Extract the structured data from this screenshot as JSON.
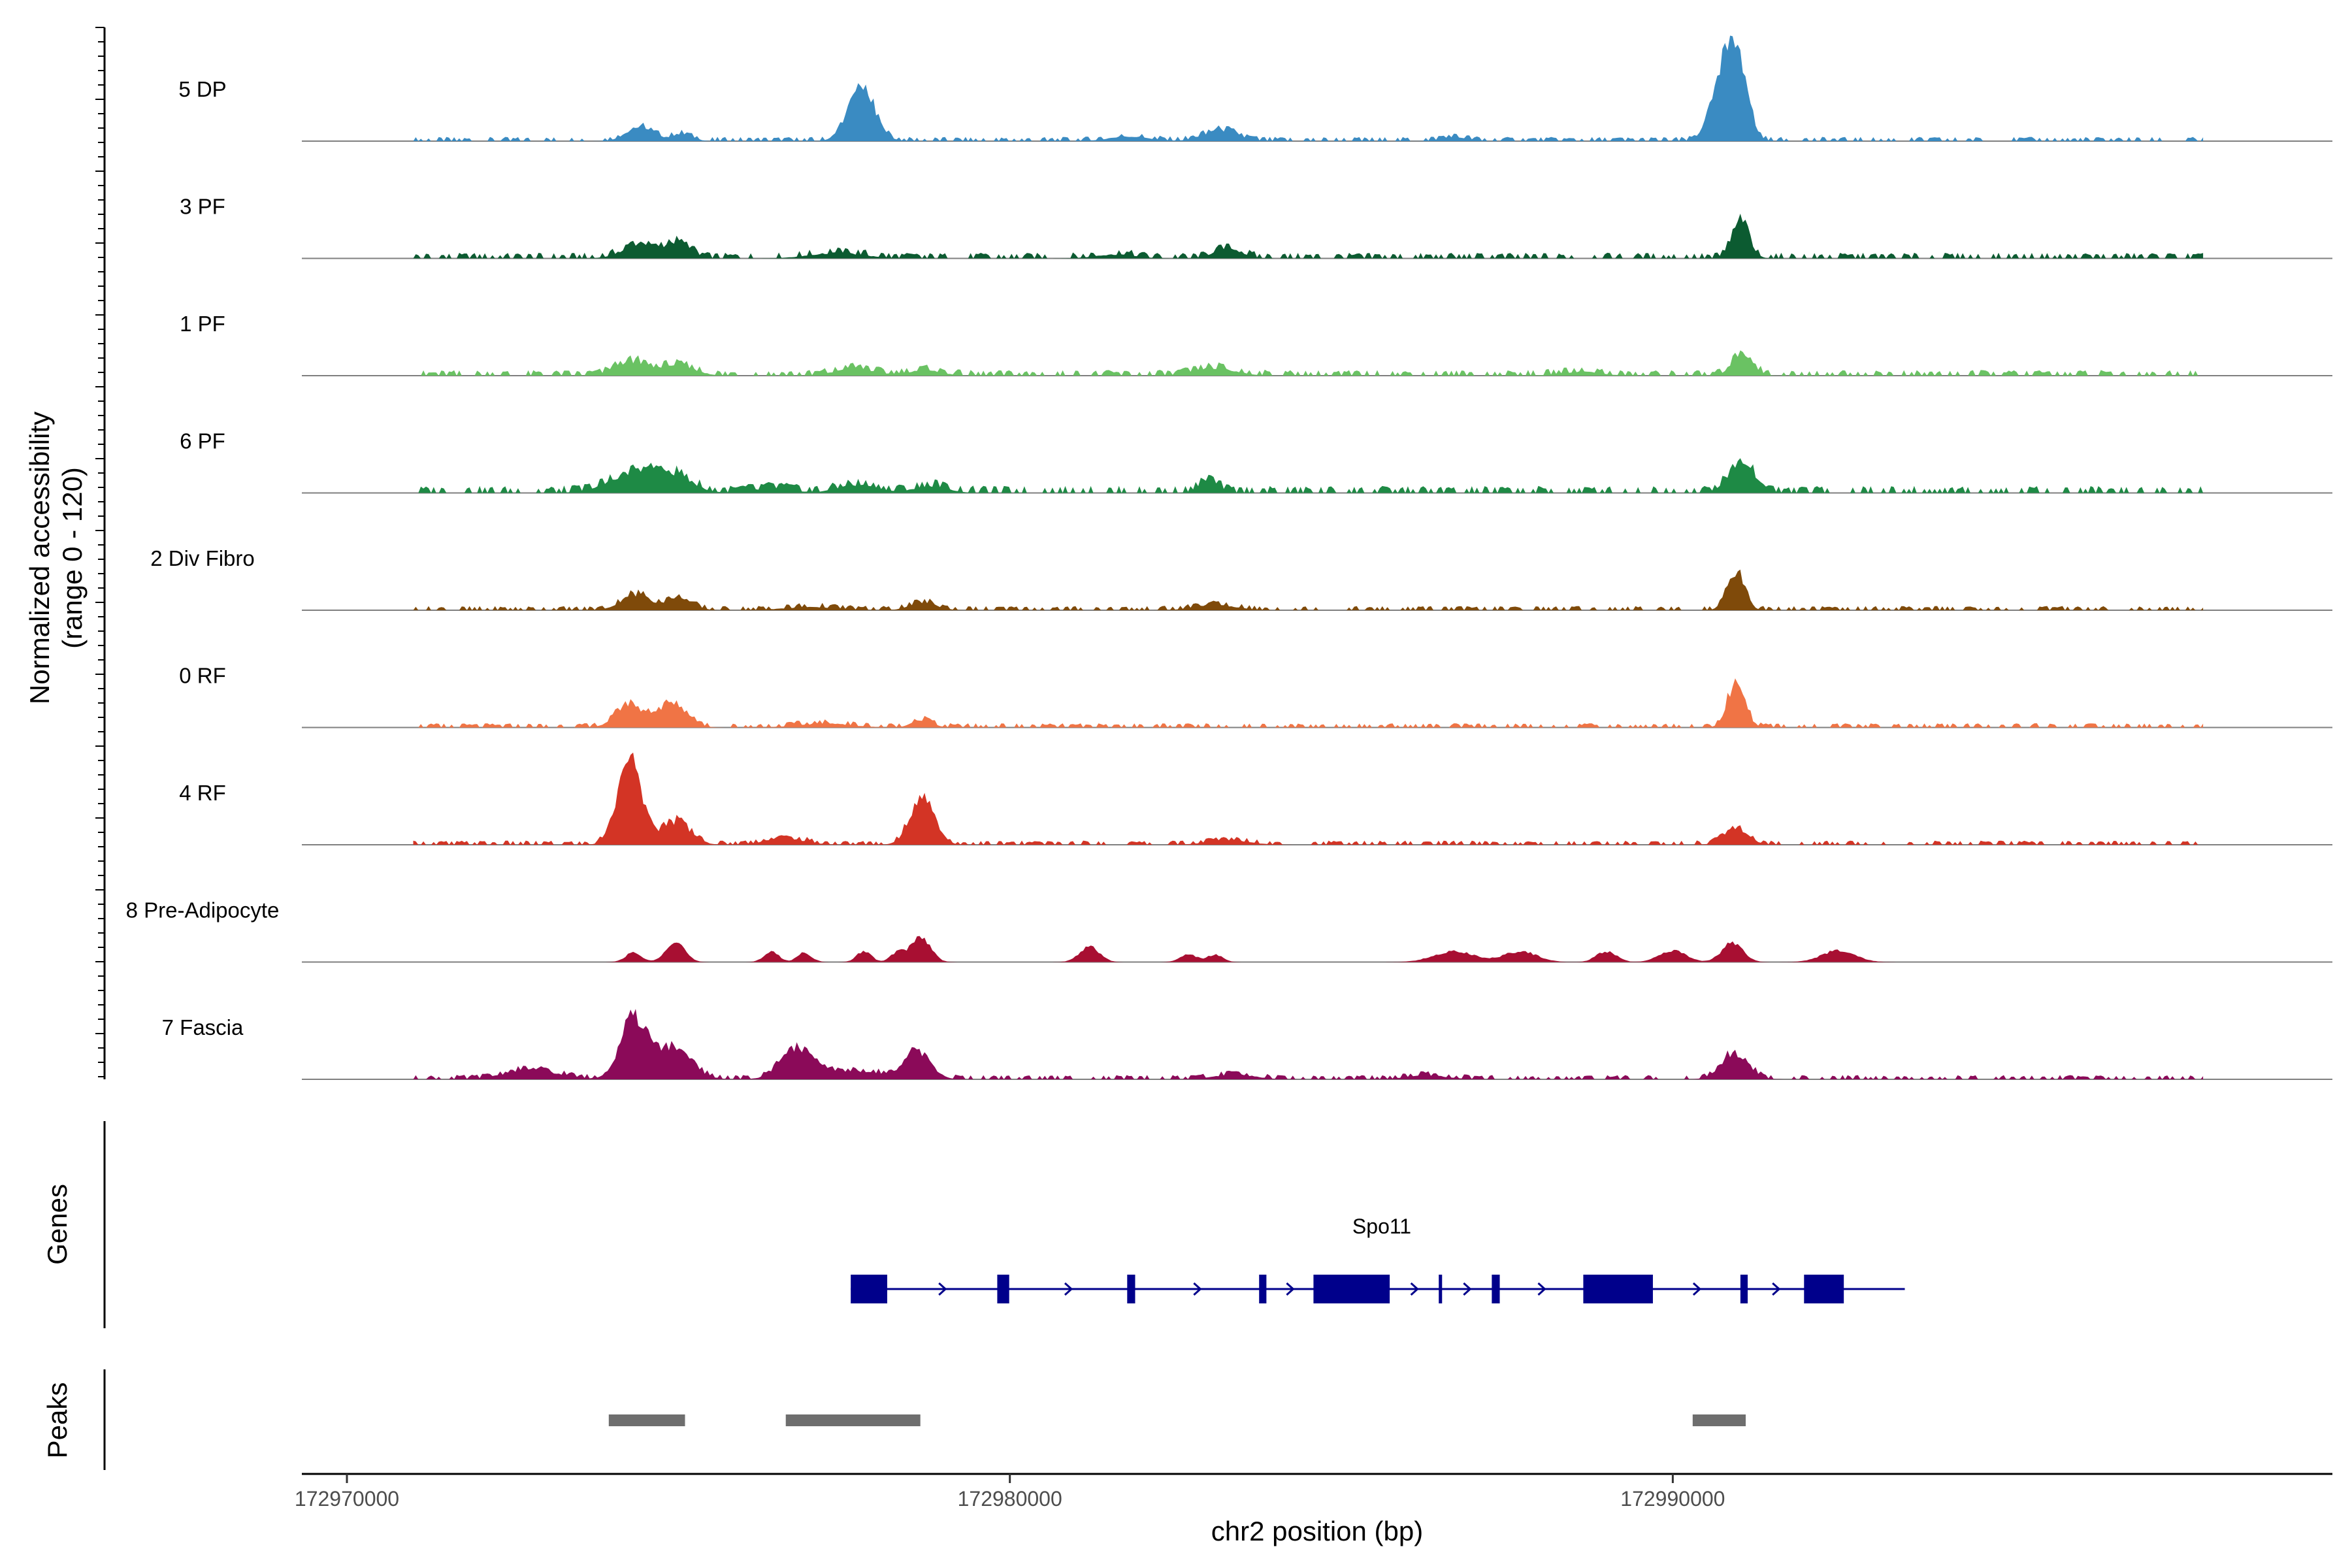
{
  "chart_data": {
    "type": "area",
    "title": "",
    "ylabel_line1": "Normalized accessibility",
    "ylabel_line2": "(range 0 - 120)",
    "xlabel": "chr2 position (bp)",
    "ylim": [
      0,
      120
    ],
    "xlim": [
      172969320,
      172999950
    ],
    "x_ticks": [
      172970000,
      172980000,
      172990000
    ],
    "x_tick_labels": [
      "172970000",
      "172980000",
      "172990000"
    ],
    "series": [
      {
        "name": "5 DP",
        "color": "#3a8bc2",
        "background": 3,
        "peaks": [
          [
            172990800,
            100,
            190
          ],
          [
            172991020,
            60,
            140
          ],
          [
            172977760,
            70,
            200
          ],
          [
            172974420,
            18,
            200
          ],
          [
            172983180,
            14,
            260
          ],
          [
            172975050,
            9,
            160
          ],
          [
            172981800,
            6,
            300
          ],
          [
            172986700,
            5,
            200
          ]
        ]
      },
      {
        "name": "3 PF",
        "color": "#0c5b31",
        "background": 4,
        "peaks": [
          [
            172991020,
            50,
            130
          ],
          [
            172974420,
            18,
            260
          ],
          [
            172975000,
            20,
            180
          ],
          [
            172983300,
            13,
            200
          ],
          [
            172977400,
            7,
            400
          ],
          [
            172981600,
            5,
            300
          ]
        ]
      },
      {
        "name": "1 PF",
        "color": "#6ac263",
        "background": 4,
        "peaks": [
          [
            172991050,
            30,
            150
          ],
          [
            172974300,
            18,
            250
          ],
          [
            172975000,
            13,
            250
          ],
          [
            172977660,
            10,
            280
          ],
          [
            172983100,
            10,
            300
          ],
          [
            172978700,
            7,
            250
          ],
          [
            172988600,
            5,
            300
          ]
        ]
      },
      {
        "name": "6 PF",
        "color": "#1e8a45",
        "background": 5,
        "peaks": [
          [
            172991050,
            38,
            200
          ],
          [
            172974400,
            28,
            400
          ],
          [
            172975000,
            15,
            250
          ],
          [
            172983000,
            15,
            150
          ],
          [
            172977700,
            10,
            300
          ],
          [
            172978800,
            9,
            250
          ],
          [
            172976400,
            6,
            300
          ]
        ]
      },
      {
        "name": "2 Div Fibro",
        "color": "#7f4a0a",
        "background": 3,
        "peaks": [
          [
            172990950,
            50,
            130
          ],
          [
            172974350,
            20,
            220
          ],
          [
            172975000,
            15,
            200
          ],
          [
            172978700,
            10,
            200
          ],
          [
            172983100,
            7,
            300
          ],
          [
            172977000,
            4,
            400
          ]
        ]
      },
      {
        "name": "0 RF",
        "color": "#f07445",
        "background": 3,
        "peaks": [
          [
            172990960,
            60,
            130
          ],
          [
            172974250,
            30,
            200
          ],
          [
            172974900,
            32,
            220
          ],
          [
            172978680,
            10,
            150
          ],
          [
            172977200,
            5,
            400
          ]
        ]
      },
      {
        "name": "4 RF",
        "color": "#d33425",
        "background": 3,
        "peaks": [
          [
            172974260,
            110,
            180
          ],
          [
            172974960,
            30,
            220
          ],
          [
            172978680,
            62,
            180
          ],
          [
            172990950,
            22,
            180
          ],
          [
            172976600,
            8,
            300
          ],
          [
            172983300,
            6,
            300
          ]
        ]
      },
      {
        "name": "8 Pre-Adipocyte",
        "color": "#a80f32",
        "background": 0,
        "peaks": [
          [
            172974320,
            12,
            120
          ],
          [
            172974950,
            28,
            140
          ],
          [
            172976400,
            14,
            110
          ],
          [
            172976900,
            12,
            110
          ],
          [
            172977800,
            14,
            110
          ],
          [
            172978300,
            12,
            100
          ],
          [
            172978650,
            33,
            150
          ],
          [
            172981200,
            20,
            150
          ],
          [
            172982700,
            10,
            130
          ],
          [
            172983100,
            10,
            110
          ],
          [
            172986700,
            14,
            300
          ],
          [
            172987700,
            14,
            250
          ],
          [
            172989000,
            14,
            150
          ],
          [
            172990000,
            15,
            200
          ],
          [
            172990900,
            25,
            160
          ],
          [
            172992500,
            15,
            250
          ]
        ]
      },
      {
        "name": "7 Fascia",
        "color": "#8b0a59",
        "background": 3,
        "peaks": [
          [
            172974320,
            75,
            200
          ],
          [
            172974900,
            40,
            280
          ],
          [
            172976800,
            40,
            250
          ],
          [
            172978600,
            35,
            200
          ],
          [
            172972800,
            12,
            400
          ],
          [
            172977700,
            10,
            400
          ],
          [
            172990930,
            34,
            200
          ],
          [
            172983400,
            6,
            300
          ],
          [
            172986300,
            5,
            300
          ]
        ]
      }
    ],
    "genes_track": {
      "label": "Genes",
      "gene": "Spo11",
      "color": "#00008b",
      "start": 172977600,
      "end": 172993500,
      "strand": "+",
      "exons": [
        [
          172977600,
          172978150
        ],
        [
          172979810,
          172979990
        ],
        [
          172981770,
          172981890
        ],
        [
          172983760,
          172983870
        ],
        [
          172984580,
          172985730
        ],
        [
          172986470,
          172986520
        ],
        [
          172987270,
          172987390
        ],
        [
          172988650,
          172989700
        ],
        [
          172991020,
          172991130
        ],
        [
          172991980,
          172992580
        ]
      ]
    },
    "peaks_track": {
      "label": "Peaks",
      "color": "#6e6e6e",
      "regions": [
        [
          172973950,
          172975100
        ],
        [
          172976620,
          172978650
        ],
        [
          172990300,
          172991100
        ]
      ]
    }
  }
}
